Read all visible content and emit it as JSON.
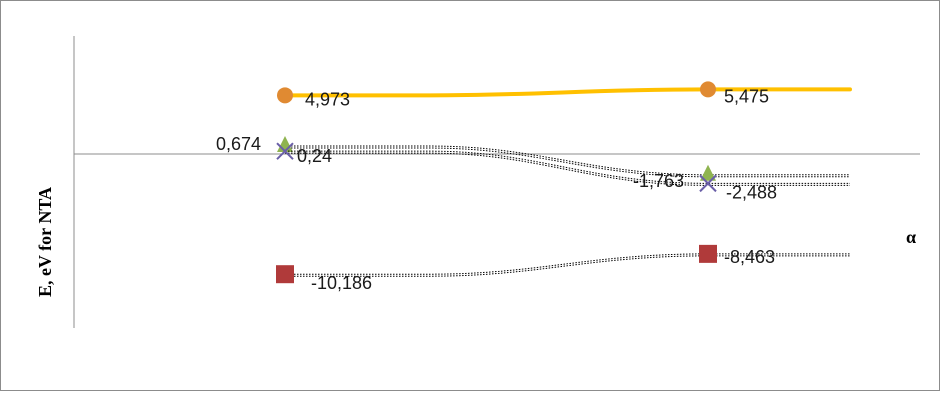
{
  "chart_data": {
    "type": "line",
    "title": "",
    "xlabel": "α",
    "ylabel": "E, eV for NTA",
    "x": [
      1,
      2
    ],
    "ylim": [
      -14,
      10
    ],
    "grid": false,
    "legend": "none",
    "series": [
      {
        "marker": "circle",
        "line": "solid",
        "color": "#FFC000",
        "marker_color": "#E08A32",
        "values": [
          4.973,
          5.475
        ],
        "labels": [
          "4,973",
          "5,475"
        ]
      },
      {
        "marker": "triangle",
        "line": "dotted",
        "color": "#000000",
        "marker_color": "#8FB450",
        "values": [
          0.674,
          -1.763
        ],
        "labels": [
          "0,674",
          "-1,763"
        ]
      },
      {
        "marker": "x",
        "line": "dotted",
        "color": "#000000",
        "marker_color": "#6A5FA8",
        "values": [
          0.24,
          -2.488
        ],
        "labels": [
          "0,24",
          "-2,488"
        ]
      },
      {
        "marker": "square",
        "line": "dotted",
        "color": "#000000",
        "marker_color": "#B03A3A",
        "values": [
          -10.186,
          -8.463
        ],
        "labels": [
          "-10,186",
          "-8,463"
        ]
      }
    ]
  }
}
